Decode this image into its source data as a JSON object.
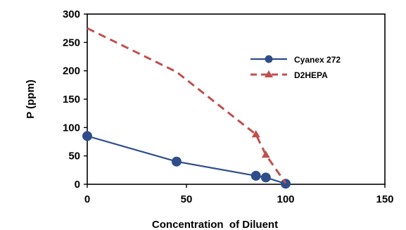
{
  "chart_data": {
    "type": "line",
    "title": "",
    "xlabel": "Concentration  of Diluent",
    "ylabel": "P (ppm)",
    "xlim": [
      0,
      150
    ],
    "ylim": [
      0,
      300
    ],
    "xticks": [
      "0",
      "50",
      "100",
      "150"
    ],
    "yticks": [
      "0",
      "50",
      "100",
      "150",
      "200",
      "250",
      "300"
    ],
    "grid": false,
    "legend_position": "right",
    "series": [
      {
        "name": "Cyanex 272",
        "color": "#2E4D8A",
        "line_style": "solid",
        "marker": "circle",
        "x": [
          0,
          45,
          85,
          90,
          100
        ],
        "y": [
          85,
          40,
          15,
          12,
          1
        ]
      },
      {
        "name": "D2HEPA",
        "color": "#C0504D",
        "line_style": "dashed",
        "marker": "triangle",
        "x": [
          0,
          45,
          85,
          90,
          100
        ],
        "y": [
          275,
          198,
          88,
          52,
          2
        ]
      }
    ]
  }
}
